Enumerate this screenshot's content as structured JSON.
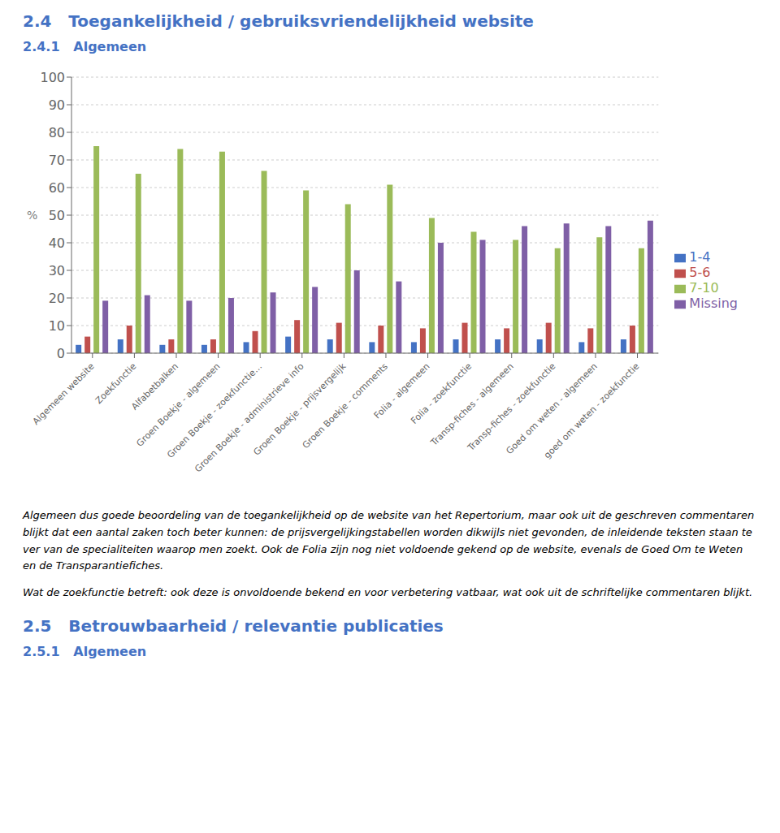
{
  "chart_data": {
    "type": "bar",
    "title": "2.4   Toegankelijkheid / gebruiksvriendelijkheid website",
    "subtitle": "2.4.1   Algemeen",
    "ylabel": "%",
    "ylim": [
      0,
      100
    ],
    "yticks": [
      0,
      10,
      20,
      30,
      40,
      50,
      60,
      70,
      80,
      90,
      100
    ],
    "grid": true,
    "legend": "right",
    "categories": [
      "Algemeen website",
      "Zoekfunctie",
      "Alfabetbalken",
      "Groen Boekje - algemeen",
      "Groen Boekje - zoekfunctie…",
      "Groen Boekje - administrieve info",
      "Groen Boekje - prijsvergelijk",
      "Groen Boekje - comments",
      "Folia - algemeen",
      "Folia - zoekfunctie",
      "Transp-fiches - algemeen",
      "Transp-fiches - zoekfunctie",
      "Goed om weten - algemeen",
      "goed om weten - zoekfunctie"
    ],
    "series": [
      {
        "name": "1-4",
        "color": "#4472C4",
        "values": [
          3,
          5,
          3,
          3,
          4,
          6,
          5,
          4,
          4,
          5,
          5,
          5,
          4,
          5
        ]
      },
      {
        "name": "5-6",
        "color": "#C0504D",
        "values": [
          6,
          10,
          5,
          5,
          8,
          12,
          11,
          10,
          9,
          11,
          9,
          11,
          9,
          10
        ]
      },
      {
        "name": "7-10",
        "color": "#9BBB59",
        "values": [
          75,
          65,
          74,
          73,
          66,
          59,
          54,
          61,
          49,
          44,
          41,
          38,
          42,
          38
        ]
      },
      {
        "name": "Missing",
        "color": "#7F5FA6",
        "values": [
          19,
          21,
          19,
          20,
          22,
          24,
          30,
          26,
          40,
          41,
          46,
          47,
          46,
          48
        ]
      }
    ],
    "annotations": [
      "Algemeen dus goede beoordeling van de toegankelijkheid op de website van het Repertorium, maar ook uit de geschreven commentaren blijkt dat een aantal zaken toch beter kunnen: de prijsvergelijkingstabellen worden dikwijls niet gevonden, de inleidende teksten staan te ver van de specialiteiten waarop men zoekt. Ook de Folia zijn nog niet voldoende gekend op de website, evenals de Goed Om te Weten en de Transparantiefiches.",
      "Wat de zoekfunctie betreft: ook deze is onvoldoende bekend en voor verbetering vatbaar, wat ook uit de schriftelijke commentaren blijkt."
    ],
    "footer_title": "2.5   Betrouwbaarheid / relevantie publicaties",
    "footer_subtitle": "2.5.1   Algemeen"
  }
}
